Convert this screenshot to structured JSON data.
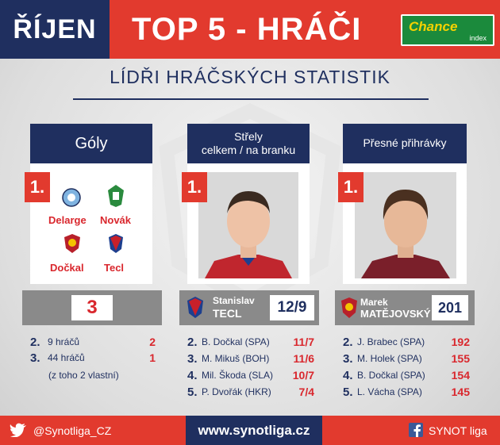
{
  "header": {
    "month": "ŘÍJEN",
    "title": "TOP 5 - HRÁČI",
    "sponsor_name": "Chance",
    "sponsor_sub": "index",
    "subtitle": "LÍDŘI HRÁČSKÝCH STATISTIK"
  },
  "colors": {
    "navy": "#1f2f5f",
    "red": "#e23a2e",
    "grey": "#8a8a8a",
    "green": "#1b8a3c"
  },
  "goals": {
    "heading": "Góly",
    "rank": "1.",
    "players": [
      {
        "name": "Delarge",
        "crest": "slovan-liberec-crest-icon"
      },
      {
        "name": "Novák",
        "crest": "jablonec-crest-icon"
      },
      {
        "name": "Dočkal",
        "crest": "sparta-crest-icon"
      },
      {
        "name": "Tecl",
        "crest": "viktoria-plzen-crest-icon"
      }
    ],
    "value": "3",
    "rows": [
      {
        "rank": "2.",
        "name": "9 hráčů",
        "value": "2"
      },
      {
        "rank": "3.",
        "name": "44 hráčů",
        "value": "1"
      }
    ],
    "note": "(z toho 2 vlastní)"
  },
  "shots": {
    "heading_line1": "Střely",
    "heading_line2": "celkem / na branku",
    "rank": "1.",
    "player_first": "Stanislav",
    "player_last": "TECL",
    "value": "12/9",
    "rows": [
      {
        "rank": "2.",
        "name": "B. Dočkal (SPA)",
        "value": "11/7"
      },
      {
        "rank": "3.",
        "name": "M. Mikuš (BOH)",
        "value": "11/6"
      },
      {
        "rank": "4.",
        "name": "Mil. Škoda (SLA)",
        "value": "10/7"
      },
      {
        "rank": "5.",
        "name": "P. Dvořák (HKR)",
        "value": "7/4"
      }
    ]
  },
  "passes": {
    "heading": "Přesné přihrávky",
    "rank": "1.",
    "player_first": "Marek",
    "player_last": "MATĚJOVSKÝ",
    "value": "201",
    "rows": [
      {
        "rank": "2.",
        "name": "J. Brabec (SPA)",
        "value": "192"
      },
      {
        "rank": "3.",
        "name": "M. Holek (SPA)",
        "value": "155"
      },
      {
        "rank": "4.",
        "name": "B. Dočkal (SPA)",
        "value": "154"
      },
      {
        "rank": "5.",
        "name": "L. Vácha (SPA)",
        "value": "145"
      }
    ]
  },
  "footer": {
    "twitter": "@Synotliga_CZ",
    "website": "www.synotliga.cz",
    "facebook": "SYNOT liga"
  }
}
